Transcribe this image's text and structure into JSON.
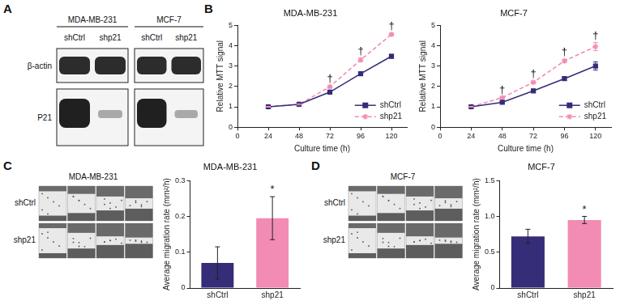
{
  "panel_labels": [
    "A",
    "B",
    "C",
    "D"
  ],
  "blot": {
    "cell_lines": [
      "MDA-MB-231",
      "MCF-7"
    ],
    "lanes": [
      "shCtrl",
      "shp21"
    ],
    "rows": [
      "β-actin",
      "P21"
    ]
  },
  "scratch_images": [
    {
      "title": "MDA-MB-231",
      "rows": [
        "shCtrl",
        "shp21"
      ]
    },
    {
      "title": "MCF-7",
      "rows": [
        "shCtrl",
        "shp21"
      ]
    }
  ],
  "chart_data": [
    {
      "type": "line",
      "title": "MDA-MB-231",
      "x_label": "Culture time (h)",
      "y_label": "Relative MTT signal",
      "x": [
        24,
        48,
        72,
        96,
        120
      ],
      "series": [
        {
          "name": "shCtrl",
          "color": "#352d78",
          "marker": "square",
          "line_style": "solid",
          "values": [
            1.0,
            1.12,
            1.72,
            2.62,
            3.48
          ],
          "errors": [
            0.02,
            0.03,
            0.05,
            0.07,
            0.09
          ]
        },
        {
          "name": "shp21",
          "color": "#f28cb4",
          "marker": "star",
          "line_style": "dashed",
          "values": [
            1.0,
            1.12,
            1.98,
            3.3,
            4.55
          ],
          "errors": [
            0.02,
            0.03,
            0.05,
            0.08,
            0.05
          ]
        }
      ],
      "xlim": [
        0,
        132
      ],
      "xticks": [
        0,
        24,
        48,
        72,
        96,
        120
      ],
      "ylim": [
        0,
        5
      ],
      "yticks": [
        0,
        1,
        2,
        3,
        4,
        5
      ],
      "grid": false,
      "legend": "lower right",
      "annotations": [
        {
          "x": 72,
          "text": "†"
        },
        {
          "x": 96,
          "text": "†"
        },
        {
          "x": 120,
          "text": "†"
        }
      ]
    },
    {
      "type": "line",
      "title": "MCF-7",
      "x_label": "Culture time (h)",
      "y_label": "Relative MTT signal",
      "x": [
        24,
        48,
        72,
        96,
        120
      ],
      "series": [
        {
          "name": "shCtrl",
          "color": "#352d78",
          "marker": "square",
          "line_style": "solid",
          "values": [
            1.0,
            1.22,
            1.78,
            2.38,
            3.0
          ],
          "errors": [
            0.02,
            0.04,
            0.05,
            0.08,
            0.2
          ]
        },
        {
          "name": "shp21",
          "color": "#f28cb4",
          "marker": "star",
          "line_style": "dashed",
          "values": [
            1.0,
            1.45,
            2.2,
            3.25,
            3.95
          ],
          "errors": [
            0.02,
            0.04,
            0.06,
            0.08,
            0.2
          ]
        }
      ],
      "xlim": [
        0,
        132
      ],
      "xticks": [
        0,
        24,
        48,
        72,
        96,
        120
      ],
      "ylim": [
        0,
        5
      ],
      "yticks": [
        0,
        1,
        2,
        3,
        4,
        5
      ],
      "grid": false,
      "legend": "lower right",
      "annotations": [
        {
          "x": 48,
          "text": "†"
        },
        {
          "x": 72,
          "text": "†"
        },
        {
          "x": 96,
          "text": "†"
        },
        {
          "x": 120,
          "text": "†"
        }
      ]
    },
    {
      "type": "bar",
      "title": "MDA-MB-231",
      "y_label": "Average migration rate (mm²/h)",
      "categories": [
        "shCtrl",
        "shp21"
      ],
      "values": [
        0.07,
        0.195
      ],
      "errors": [
        0.045,
        0.06
      ],
      "colors": [
        "#352d78",
        "#f28cb4"
      ],
      "ylim": [
        0,
        0.3
      ],
      "yticks": [
        0,
        0.1,
        0.2,
        0.3
      ],
      "grid": false,
      "annotations": [
        {
          "category": "shp21",
          "text": "*"
        }
      ]
    },
    {
      "type": "bar",
      "title": "MCF-7",
      "y_label": "Average migration rate (mm²/h)",
      "categories": [
        "shCtrl",
        "shp21"
      ],
      "values": [
        0.72,
        0.95
      ],
      "errors": [
        0.1,
        0.05
      ],
      "colors": [
        "#352d78",
        "#f28cb4"
      ],
      "ylim": [
        0,
        1.5
      ],
      "yticks": [
        0,
        0.5,
        {
          "value": 1.0,
          "label": "1.0"
        },
        1.5
      ],
      "grid": false,
      "annotations": [
        {
          "category": "shp21",
          "text": "*"
        }
      ]
    }
  ]
}
